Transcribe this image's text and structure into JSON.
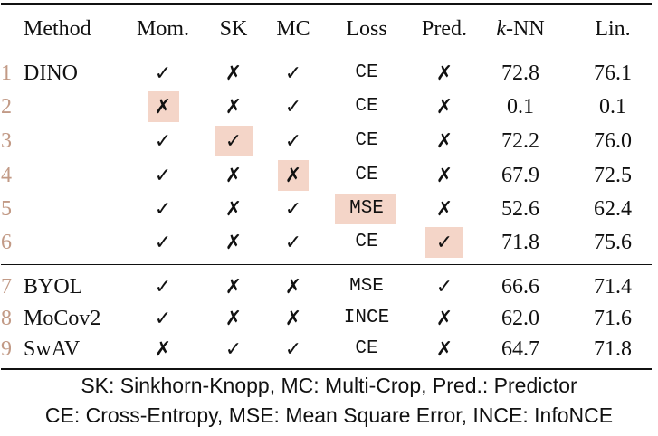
{
  "table": {
    "headers": {
      "method": "Method",
      "momentum": "Mom.",
      "sk": "SK",
      "mc": "MC",
      "loss": "Loss",
      "pred": "Pred.",
      "knn_k": "k",
      "knn_rest": "-NN",
      "lin": "Lin."
    },
    "rows": [
      {
        "num": "1",
        "method": "DINO",
        "mom": "✓",
        "sk": "✗",
        "mc": "✓",
        "loss": "CE",
        "pred": "✗",
        "knn": "72.8",
        "lin": "76.1",
        "highlight": ""
      },
      {
        "num": "2",
        "method": "",
        "mom": "✗",
        "sk": "✗",
        "mc": "✓",
        "loss": "CE",
        "pred": "✗",
        "knn": "0.1",
        "lin": "0.1",
        "highlight": "mom"
      },
      {
        "num": "3",
        "method": "",
        "mom": "✓",
        "sk": "✓",
        "mc": "✓",
        "loss": "CE",
        "pred": "✗",
        "knn": "72.2",
        "lin": "76.0",
        "highlight": "sk"
      },
      {
        "num": "4",
        "method": "",
        "mom": "✓",
        "sk": "✗",
        "mc": "✗",
        "loss": "CE",
        "pred": "✗",
        "knn": "67.9",
        "lin": "72.5",
        "highlight": "mc"
      },
      {
        "num": "5",
        "method": "",
        "mom": "✓",
        "sk": "✗",
        "mc": "✓",
        "loss": "MSE",
        "pred": "✗",
        "knn": "52.6",
        "lin": "62.4",
        "highlight": "loss"
      },
      {
        "num": "6",
        "method": "",
        "mom": "✓",
        "sk": "✗",
        "mc": "✓",
        "loss": "CE",
        "pred": "✓",
        "knn": "71.8",
        "lin": "75.6",
        "highlight": "pred"
      },
      {
        "num": "7",
        "method": "BYOL",
        "mom": "✓",
        "sk": "✗",
        "mc": "✗",
        "loss": "MSE",
        "pred": "✓",
        "knn": "66.6",
        "lin": "71.4",
        "highlight": ""
      },
      {
        "num": "8",
        "method": "MoCov2",
        "mom": "✓",
        "sk": "✗",
        "mc": "✗",
        "loss": "INCE",
        "pred": "✗",
        "knn": "62.0",
        "lin": "71.6",
        "highlight": ""
      },
      {
        "num": "9",
        "method": "SwAV",
        "mom": "✗",
        "sk": "✓",
        "mc": "✓",
        "loss": "CE",
        "pred": "✗",
        "knn": "64.7",
        "lin": "71.8",
        "highlight": ""
      }
    ]
  },
  "footnotes": [
    "SK: Sinkhorn-Knopp, MC: Multi-Crop, Pred.: Predictor",
    "CE: Cross-Entropy, MSE: Mean Square Error, INCE: InfoNCE"
  ],
  "colors": {
    "highlight": "#f4d5c8",
    "row_number": "#c29a86",
    "text": "#111111"
  }
}
